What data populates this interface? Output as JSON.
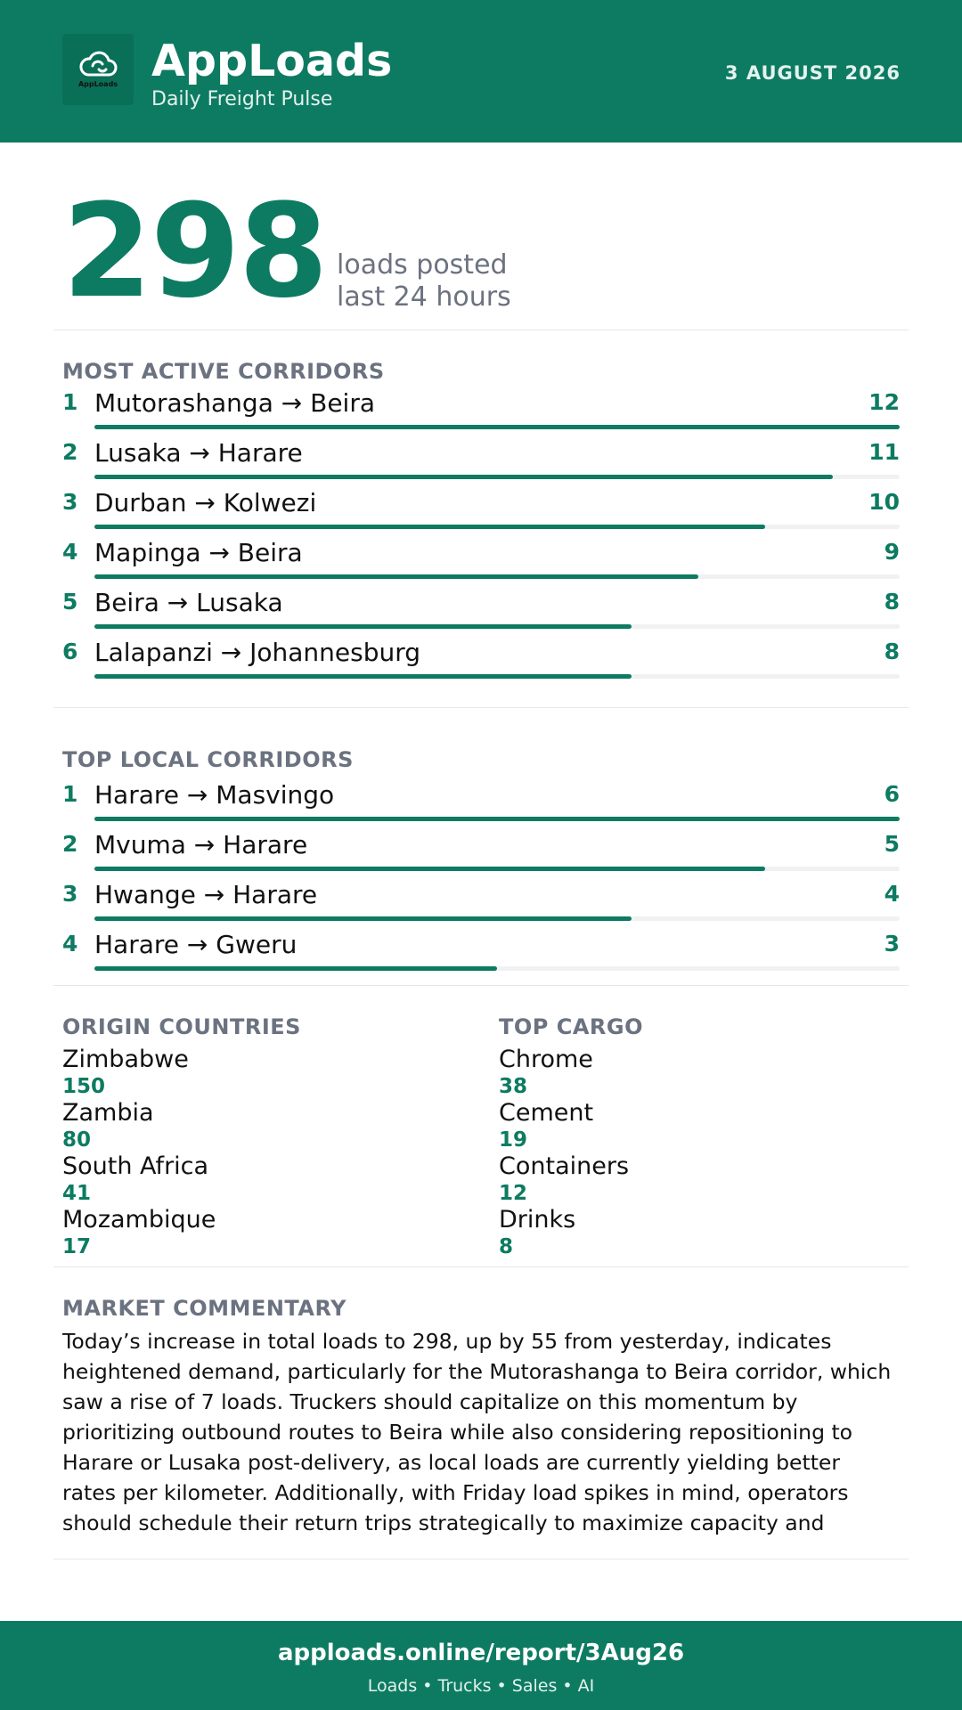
{
  "header": {
    "logo_text": "AppLoads",
    "brand": "AppLoads",
    "tagline": "Daily Freight Pulse",
    "date": "3 AUGUST 2026"
  },
  "summary": {
    "total_loads": "298",
    "caption_line1": "loads posted",
    "caption_line2": "last 24 hours"
  },
  "active_corridors": {
    "title": "MOST ACTIVE CORRIDORS",
    "max": 12,
    "items": [
      {
        "rank": "1",
        "route": "Mutorashanga → Beira",
        "count": "12",
        "value": 12
      },
      {
        "rank": "2",
        "route": "Lusaka → Harare",
        "count": "11",
        "value": 11
      },
      {
        "rank": "3",
        "route": "Durban → Kolwezi",
        "count": "10",
        "value": 10
      },
      {
        "rank": "4",
        "route": "Mapinga → Beira",
        "count": "9",
        "value": 9
      },
      {
        "rank": "5",
        "route": "Beira → Lusaka",
        "count": "8",
        "value": 8
      },
      {
        "rank": "6",
        "route": "Lalapanzi → Johannesburg",
        "count": "8",
        "value": 8
      }
    ]
  },
  "local_corridors": {
    "title": "TOP LOCAL CORRIDORS",
    "max": 6,
    "items": [
      {
        "rank": "1",
        "route": "Harare → Masvingo",
        "count": "6",
        "value": 6
      },
      {
        "rank": "2",
        "route": "Mvuma → Harare",
        "count": "5",
        "value": 5
      },
      {
        "rank": "3",
        "route": "Hwange → Harare",
        "count": "4",
        "value": 4
      },
      {
        "rank": "4",
        "route": "Harare → Gweru",
        "count": "3",
        "value": 3
      }
    ]
  },
  "origin_countries": {
    "title": "ORIGIN COUNTRIES",
    "items": [
      {
        "name": "Zimbabwe",
        "value": "150"
      },
      {
        "name": "Zambia",
        "value": "80"
      },
      {
        "name": "South Africa",
        "value": "41"
      },
      {
        "name": "Mozambique",
        "value": "17"
      }
    ]
  },
  "top_cargo": {
    "title": "TOP CARGO",
    "items": [
      {
        "name": "Chrome",
        "value": "38"
      },
      {
        "name": "Cement",
        "value": "19"
      },
      {
        "name": "Containers",
        "value": "12"
      },
      {
        "name": "Drinks",
        "value": "8"
      }
    ]
  },
  "commentary": {
    "title": "MARKET COMMENTARY",
    "text": "Today’s increase in total loads to 298, up by 55 from yesterday, indicates heightened demand, particularly for the Mutorashanga to Beira corridor, which saw a rise of 7 loads. Truckers should capitalize on this momentum by prioritizing outbound routes to Beira while also considering repositioning to Harare or Lusaka post-delivery, as local loads are currently yielding better rates per kilometer. Additionally, with Friday load spikes in mind, operators should schedule their return trips strategically to maximize capacity and"
  },
  "footer": {
    "url": "apploads.online/report/3Aug26",
    "subtitle": "Loads • Trucks • Sales • AI"
  },
  "colors": {
    "brand_green": "#0d7b62",
    "muted_gray": "#6b7280",
    "track_gray": "#f0f1f3"
  },
  "icons": {
    "logo": "cloud-icon"
  }
}
